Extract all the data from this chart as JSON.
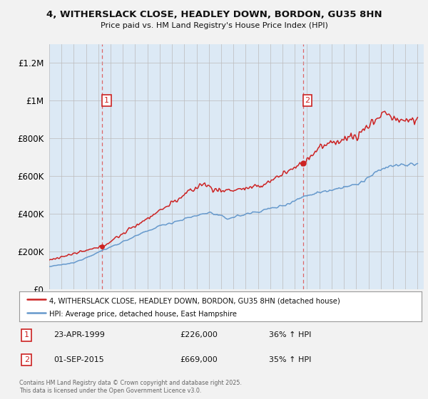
{
  "title1": "4, WITHERSLACK CLOSE, HEADLEY DOWN, BORDON, GU35 8HN",
  "title2": "Price paid vs. HM Land Registry's House Price Index (HPI)",
  "bg_color": "#f2f2f2",
  "plot_bg_color": "#dce9f5",
  "red_label": "4, WITHERSLACK CLOSE, HEADLEY DOWN, BORDON, GU35 8HN (detached house)",
  "blue_label": "HPI: Average price, detached house, East Hampshire",
  "annotation1_date": "23-APR-1999",
  "annotation1_price": "£226,000",
  "annotation1_hpi": "36% ↑ HPI",
  "annotation2_date": "01-SEP-2015",
  "annotation2_price": "£669,000",
  "annotation2_hpi": "35% ↑ HPI",
  "footer": "Contains HM Land Registry data © Crown copyright and database right 2025.\nThis data is licensed under the Open Government Licence v3.0.",
  "ylim": [
    0,
    1300000
  ],
  "yticks": [
    0,
    200000,
    400000,
    600000,
    800000,
    1000000,
    1200000
  ],
  "ytick_labels": [
    "£0",
    "£200K",
    "£400K",
    "£600K",
    "£800K",
    "£1M",
    "£1.2M"
  ],
  "marker1_year": 1999.31,
  "marker1_price": 226000,
  "marker2_year": 2015.67,
  "marker2_price": 669000,
  "vline1_year": 1999.31,
  "vline2_year": 2015.67,
  "red_color": "#cc2222",
  "blue_color": "#6699cc",
  "grid_color": "#bbbbbb",
  "vline_color": "#dd4444"
}
